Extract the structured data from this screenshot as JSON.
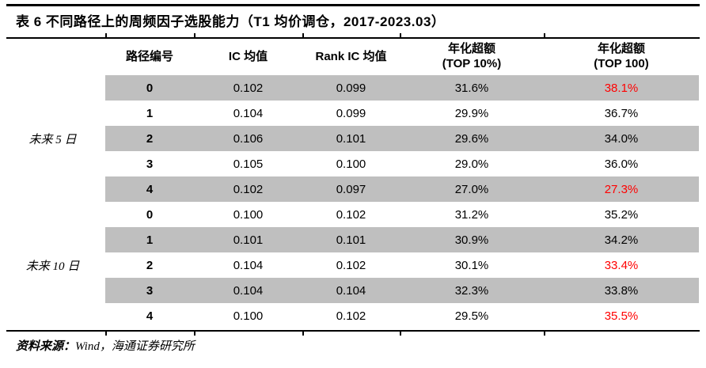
{
  "title": "表 6 不同路径上的周频因子选股能力（T1 均价调仓，2017-2023.03）",
  "table": {
    "headers": [
      {
        "line1": "路径编号",
        "line2": ""
      },
      {
        "line1": "IC 均值",
        "line2": ""
      },
      {
        "line1": "Rank IC 均值",
        "line2": ""
      },
      {
        "line1": "年化超额",
        "line2": "(TOP 10%)"
      },
      {
        "line1": "年化超额",
        "line2": "(TOP 100)"
      }
    ],
    "groups": [
      {
        "label": "未来 5 日",
        "rows": [
          {
            "path": "0",
            "ic": "0.102",
            "rank_ic": "0.099",
            "top10": "31.6%",
            "top100": "38.1%",
            "top100_red": true
          },
          {
            "path": "1",
            "ic": "0.104",
            "rank_ic": "0.099",
            "top10": "29.9%",
            "top100": "36.7%",
            "top100_red": false
          },
          {
            "path": "2",
            "ic": "0.106",
            "rank_ic": "0.101",
            "top10": "29.6%",
            "top100": "34.0%",
            "top100_red": false
          },
          {
            "path": "3",
            "ic": "0.105",
            "rank_ic": "0.100",
            "top10": "29.0%",
            "top100": "36.0%",
            "top100_red": false
          },
          {
            "path": "4",
            "ic": "0.102",
            "rank_ic": "0.097",
            "top10": "27.0%",
            "top100": "27.3%",
            "top100_red": true
          }
        ]
      },
      {
        "label": "未来 10 日",
        "rows": [
          {
            "path": "0",
            "ic": "0.100",
            "rank_ic": "0.102",
            "top10": "31.2%",
            "top100": "35.2%",
            "top100_red": false
          },
          {
            "path": "1",
            "ic": "0.101",
            "rank_ic": "0.101",
            "top10": "30.9%",
            "top100": "34.2%",
            "top100_red": false
          },
          {
            "path": "2",
            "ic": "0.104",
            "rank_ic": "0.102",
            "top10": "30.1%",
            "top100": "33.4%",
            "top100_red": true
          },
          {
            "path": "3",
            "ic": "0.104",
            "rank_ic": "0.104",
            "top10": "32.3%",
            "top100": "33.8%",
            "top100_red": false
          },
          {
            "path": "4",
            "ic": "0.100",
            "rank_ic": "0.102",
            "top10": "29.5%",
            "top100": "35.5%",
            "top100_red": true
          }
        ]
      }
    ]
  },
  "source": {
    "prefix": "资料来源：",
    "text": "Wind，海通证券研究所"
  },
  "colors": {
    "stripe_gray": "#bfbfbf",
    "highlight_red": "#ff0000",
    "rule_black": "#000000"
  }
}
